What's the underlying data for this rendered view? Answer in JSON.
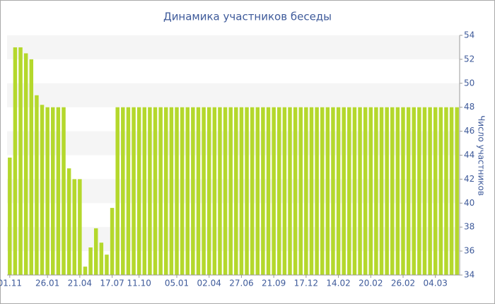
{
  "chart_data": {
    "type": "bar",
    "title": "Динамика участников беседы",
    "y_label": "Число участников",
    "categories": [
      "01.11",
      null,
      null,
      null,
      null,
      null,
      null,
      "26.01",
      null,
      null,
      null,
      null,
      null,
      "21.04",
      null,
      null,
      null,
      null,
      null,
      "17.07",
      null,
      null,
      null,
      null,
      "11.10",
      null,
      null,
      null,
      null,
      null,
      null,
      "05.01",
      null,
      null,
      null,
      null,
      null,
      "02.04",
      null,
      null,
      null,
      null,
      null,
      "27.06",
      null,
      null,
      null,
      null,
      null,
      "21.09",
      null,
      null,
      null,
      null,
      null,
      "17.12",
      null,
      null,
      null,
      null,
      null,
      "14.02",
      null,
      null,
      null,
      null,
      null,
      "20.02",
      null,
      null,
      null,
      null,
      null,
      "26.02",
      null,
      null,
      null,
      null,
      null,
      "04.03",
      null,
      null,
      null,
      null
    ],
    "values": [
      43.8,
      53,
      53,
      52.5,
      52,
      49,
      48.2,
      48,
      48,
      48,
      48,
      42.9,
      42,
      42,
      34.7,
      36.3,
      37.9,
      36.7,
      35.7,
      39.6,
      48,
      48,
      48,
      48,
      48,
      48,
      48,
      48,
      48,
      48,
      48,
      48,
      48,
      48,
      48,
      48,
      48,
      48,
      48,
      48,
      48,
      48,
      48,
      48,
      48,
      48,
      48,
      48,
      48,
      48,
      48,
      48,
      48,
      48,
      48,
      48,
      48,
      48,
      48,
      48,
      48,
      48,
      48,
      48,
      48,
      48,
      48,
      48,
      48,
      48,
      48,
      48,
      48,
      48,
      48,
      48,
      48,
      48,
      48,
      48,
      48,
      48,
      48,
      48
    ],
    "color": "#b4d82c",
    "ylim": [
      34,
      54
    ],
    "yticks": [
      34,
      36,
      38,
      40,
      42,
      44,
      46,
      48,
      50,
      52,
      54
    ],
    "y_axis_side": "right",
    "grid_bands": true
  }
}
